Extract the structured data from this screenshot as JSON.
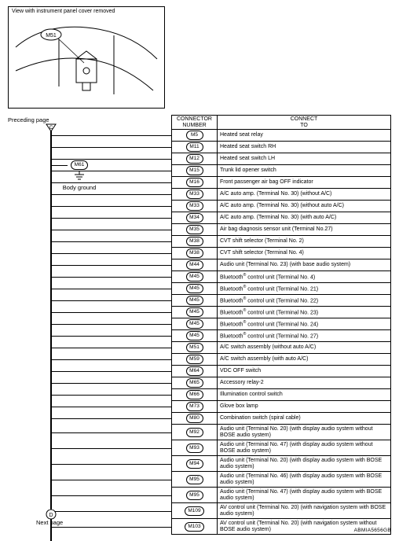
{
  "illustration": {
    "title": "View with instrument panel cover removed",
    "callout": "M51"
  },
  "preceding_label": "Preceding page",
  "next_label": "Next page",
  "footer_code": "ABMIA5656GB",
  "body_ground": {
    "connector": "M61",
    "label": "Body ground"
  },
  "table": {
    "header_num": "CONNECTOR\nNUMBER",
    "header_to": "CONNECT\nTO",
    "rows": [
      {
        "num": "M5",
        "desc": "Heated seat relay"
      },
      {
        "num": "M11",
        "desc": "Heated seat switch RH"
      },
      {
        "num": "M12",
        "desc": "Heated seat switch LH"
      },
      {
        "num": "M15",
        "desc": "Trunk lid opener switch"
      },
      {
        "num": "M16",
        "desc": "Front passenger air bag OFF indicator"
      },
      {
        "num": "M33",
        "desc": "A/C auto amp. (Terminal No. 30) (without A/C)"
      },
      {
        "num": "M33",
        "desc": "A/C auto amp. (Terminal No. 30) (without auto A/C)"
      },
      {
        "num": "M34",
        "desc": "A/C auto amp. (Terminal No. 30) (with auto A/C)"
      },
      {
        "num": "M35",
        "desc": "Air bag diagnosis sensor unit (Terminal No.27)"
      },
      {
        "num": "M38",
        "desc": "CVT shift selector (Terminal No. 2)"
      },
      {
        "num": "M38",
        "desc": "CVT shift selector (Terminal No. 4)"
      },
      {
        "num": "M44",
        "desc": "Audio unit (Terminal No. 23) (with base audio system)"
      },
      {
        "num": "M45",
        "desc": "Bluetooth® control unit (Terminal No. 4)"
      },
      {
        "num": "M45",
        "desc": "Bluetooth® control unit (Terminal No. 21)"
      },
      {
        "num": "M45",
        "desc": "Bluetooth® control unit (Terminal No. 22)"
      },
      {
        "num": "M45",
        "desc": "Bluetooth® control unit (Terminal No. 23)"
      },
      {
        "num": "M45",
        "desc": "Bluetooth® control unit (Terminal No. 24)"
      },
      {
        "num": "M45",
        "desc": "Bluetooth® control unit (Terminal No. 27)"
      },
      {
        "num": "M51",
        "desc": "A/C switch assembly (without auto A/C)"
      },
      {
        "num": "M59",
        "desc": "A/C switch assembly (with auto A/C)"
      },
      {
        "num": "M64",
        "desc": "VDC OFF switch"
      },
      {
        "num": "M65",
        "desc": "Accessory relay-2"
      },
      {
        "num": "M66",
        "desc": "Illumination control switch"
      },
      {
        "num": "M73",
        "desc": "Glove box lamp"
      },
      {
        "num": "M80",
        "desc": "Combination switch (spiral cable)"
      },
      {
        "num": "M92",
        "desc": "Audio unit (Terminal No. 20) (with display audio system without BOSE audio system)",
        "tall": true
      },
      {
        "num": "M93",
        "desc": "Audio unit (Terminal No. 47) (with display audio system without BOSE audio system)",
        "tall": true
      },
      {
        "num": "M94",
        "desc": "Audio unit (Terminal No. 20) (with display audio system with BOSE audio system)",
        "tall": true
      },
      {
        "num": "M95",
        "desc": "Audio unit (Terminal No. 46) (with display audio system with BOSE audio system)",
        "tall": true
      },
      {
        "num": "M95",
        "desc": "Audio unit (Terminal No. 47) (with display audio system with BOSE audio system)",
        "tall": true
      },
      {
        "num": "M109",
        "desc": "AV control unit (Terminal No. 20) (with navigation system with BOSE audio system)",
        "tall": true
      },
      {
        "num": "M103",
        "desc": "AV control unit (Terminal No. 20) (with navigation system without BOSE audio system)",
        "tall": true
      }
    ]
  },
  "style": {
    "oval_border": "#000000",
    "line_color": "#000000",
    "font_size_desc_pt": 7,
    "font_size_header_pt": 7
  }
}
